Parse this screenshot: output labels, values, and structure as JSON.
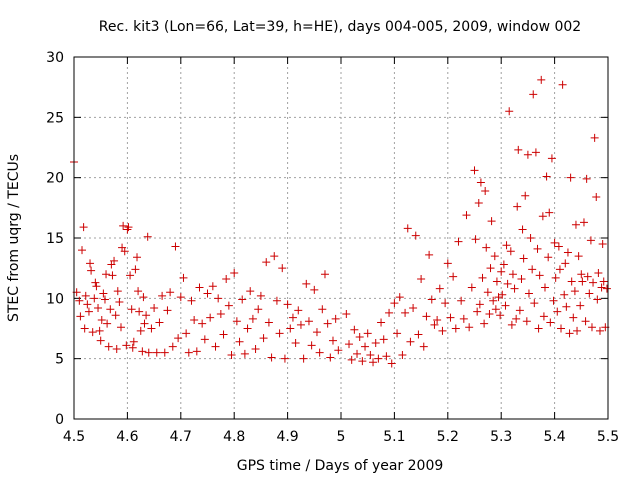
{
  "chart_data": {
    "type": "scatter",
    "title": "Rec. kit3 (Lon=66, Lat=39, h=HE), days 004-005, 2009, window 002",
    "xlabel": "GPS time / Days of year 2009",
    "ylabel": "STEC from uqrg / TECUs",
    "xlim": [
      4.5,
      5.5
    ],
    "ylim": [
      0,
      30
    ],
    "x_ticks": [
      4.5,
      4.6,
      4.7,
      4.8,
      4.9,
      5.0,
      5.1,
      5.2,
      5.3,
      5.4,
      5.5
    ],
    "x_tick_labels": [
      "4.5",
      "4.6",
      "4.7",
      "4.8",
      "4.9",
      "5",
      "5.1",
      "5.2",
      "5.3",
      "5.4",
      "5.5"
    ],
    "y_ticks": [
      0,
      5,
      10,
      15,
      20,
      25,
      30
    ],
    "y_tick_labels": [
      "0",
      "5",
      "10",
      "15",
      "20",
      "25",
      "30"
    ],
    "grid": true,
    "marker": "plus",
    "marker_color": "#cc0000",
    "series": [
      {
        "name": "stec",
        "points": [
          [
            4.5,
            21.3
          ],
          [
            4.505,
            10.5
          ],
          [
            4.51,
            9.8
          ],
          [
            4.512,
            8.5
          ],
          [
            4.515,
            14.0
          ],
          [
            4.518,
            15.9
          ],
          [
            4.52,
            7.5
          ],
          [
            4.522,
            10.2
          ],
          [
            4.525,
            9.5
          ],
          [
            4.528,
            8.9
          ],
          [
            4.53,
            12.9
          ],
          [
            4.532,
            12.3
          ],
          [
            4.535,
            7.2
          ],
          [
            4.538,
            10.0
          ],
          [
            4.54,
            11.3
          ],
          [
            4.542,
            11.0
          ],
          [
            4.545,
            9.2
          ],
          [
            4.548,
            7.3
          ],
          [
            4.55,
            6.5
          ],
          [
            4.552,
            8.2
          ],
          [
            4.555,
            10.4
          ],
          [
            4.558,
            9.9
          ],
          [
            4.56,
            12.0
          ],
          [
            4.562,
            7.9
          ],
          [
            4.565,
            6.0
          ],
          [
            4.568,
            9.1
          ],
          [
            4.57,
            12.8
          ],
          [
            4.572,
            11.9
          ],
          [
            4.575,
            13.1
          ],
          [
            4.578,
            8.6
          ],
          [
            4.58,
            5.8
          ],
          [
            4.582,
            10.6
          ],
          [
            4.585,
            9.7
          ],
          [
            4.588,
            7.6
          ],
          [
            4.59,
            14.2
          ],
          [
            4.592,
            16.0
          ],
          [
            4.595,
            13.9
          ],
          [
            4.598,
            6.1
          ],
          [
            4.6,
            15.7
          ],
          [
            4.602,
            15.9
          ],
          [
            4.605,
            11.9
          ],
          [
            4.608,
            9.1
          ],
          [
            4.61,
            5.9
          ],
          [
            4.612,
            6.4
          ],
          [
            4.615,
            12.4
          ],
          [
            4.618,
            13.4
          ],
          [
            4.62,
            10.6
          ],
          [
            4.622,
            8.9
          ],
          [
            4.625,
            7.3
          ],
          [
            4.628,
            5.6
          ],
          [
            4.63,
            10.1
          ],
          [
            4.632,
            7.9
          ],
          [
            4.635,
            8.6
          ],
          [
            4.638,
            15.1
          ],
          [
            4.64,
            5.5
          ],
          [
            4.645,
            7.5
          ],
          [
            4.65,
            9.2
          ],
          [
            4.655,
            5.5
          ],
          [
            4.66,
            8.0
          ],
          [
            4.665,
            10.2
          ],
          [
            4.67,
            5.5
          ],
          [
            4.675,
            9.0
          ],
          [
            4.68,
            10.5
          ],
          [
            4.685,
            6.0
          ],
          [
            4.69,
            14.3
          ],
          [
            4.695,
            6.7
          ],
          [
            4.7,
            10.1
          ],
          [
            4.705,
            11.7
          ],
          [
            4.71,
            7.1
          ],
          [
            4.715,
            5.5
          ],
          [
            4.72,
            9.8
          ],
          [
            4.725,
            8.2
          ],
          [
            4.73,
            5.6
          ],
          [
            4.735,
            10.9
          ],
          [
            4.74,
            7.9
          ],
          [
            4.745,
            6.6
          ],
          [
            4.75,
            10.4
          ],
          [
            4.755,
            8.4
          ],
          [
            4.76,
            11.0
          ],
          [
            4.765,
            6.0
          ],
          [
            4.77,
            10.0
          ],
          [
            4.775,
            8.7
          ],
          [
            4.78,
            7.0
          ],
          [
            4.785,
            11.6
          ],
          [
            4.79,
            9.4
          ],
          [
            4.795,
            5.3
          ],
          [
            4.8,
            12.1
          ],
          [
            4.805,
            8.1
          ],
          [
            4.81,
            6.4
          ],
          [
            4.815,
            9.9
          ],
          [
            4.82,
            5.4
          ],
          [
            4.825,
            7.5
          ],
          [
            4.83,
            10.6
          ],
          [
            4.835,
            8.3
          ],
          [
            4.84,
            5.8
          ],
          [
            4.845,
            9.1
          ],
          [
            4.85,
            10.2
          ],
          [
            4.855,
            6.7
          ],
          [
            4.86,
            13.0
          ],
          [
            4.865,
            8.0
          ],
          [
            4.87,
            5.1
          ],
          [
            4.875,
            13.5
          ],
          [
            4.88,
            9.8
          ],
          [
            4.885,
            7.1
          ],
          [
            4.89,
            12.5
          ],
          [
            4.895,
            5.0
          ],
          [
            4.9,
            9.5
          ],
          [
            4.905,
            7.5
          ],
          [
            4.91,
            8.4
          ],
          [
            4.915,
            6.3
          ],
          [
            4.92,
            9.0
          ],
          [
            4.925,
            7.8
          ],
          [
            4.93,
            5.0
          ],
          [
            4.935,
            11.2
          ],
          [
            4.94,
            8.1
          ],
          [
            4.945,
            6.1
          ],
          [
            4.95,
            10.7
          ],
          [
            4.955,
            7.2
          ],
          [
            4.96,
            5.5
          ],
          [
            4.965,
            9.1
          ],
          [
            4.97,
            12.0
          ],
          [
            4.975,
            7.9
          ],
          [
            4.98,
            5.1
          ],
          [
            4.985,
            6.5
          ],
          [
            4.99,
            8.3
          ],
          [
            4.995,
            5.7
          ],
          [
            5.01,
            8.7
          ],
          [
            5.015,
            6.2
          ],
          [
            5.02,
            4.9
          ],
          [
            5.025,
            7.4
          ],
          [
            5.03,
            5.4
          ],
          [
            5.035,
            6.8
          ],
          [
            5.04,
            4.8
          ],
          [
            5.045,
            6.0
          ],
          [
            5.05,
            7.1
          ],
          [
            5.055,
            5.3
          ],
          [
            5.06,
            4.7
          ],
          [
            5.065,
            6.3
          ],
          [
            5.07,
            5.0
          ],
          [
            5.075,
            8.0
          ],
          [
            5.08,
            6.6
          ],
          [
            5.085,
            5.2
          ],
          [
            5.09,
            8.8
          ],
          [
            5.095,
            4.6
          ],
          [
            5.1,
            9.6
          ],
          [
            5.105,
            7.1
          ],
          [
            5.11,
            10.1
          ],
          [
            5.115,
            5.3
          ],
          [
            5.12,
            8.8
          ],
          [
            5.125,
            15.8
          ],
          [
            5.13,
            6.4
          ],
          [
            5.135,
            9.2
          ],
          [
            5.14,
            15.2
          ],
          [
            5.145,
            7.0
          ],
          [
            5.15,
            11.6
          ],
          [
            5.155,
            6.0
          ],
          [
            5.16,
            8.5
          ],
          [
            5.165,
            13.6
          ],
          [
            5.17,
            9.9
          ],
          [
            5.175,
            7.8
          ],
          [
            5.18,
            8.2
          ],
          [
            5.185,
            10.8
          ],
          [
            5.19,
            7.3
          ],
          [
            5.195,
            9.6
          ],
          [
            5.2,
            12.9
          ],
          [
            5.205,
            8.4
          ],
          [
            5.21,
            11.8
          ],
          [
            5.215,
            7.5
          ],
          [
            5.22,
            14.7
          ],
          [
            5.225,
            9.8
          ],
          [
            5.23,
            8.3
          ],
          [
            5.235,
            16.9
          ],
          [
            5.24,
            7.6
          ],
          [
            5.245,
            10.9
          ],
          [
            5.25,
            20.6
          ],
          [
            5.252,
            14.9
          ],
          [
            5.255,
            8.9
          ],
          [
            5.258,
            17.9
          ],
          [
            5.26,
            9.5
          ],
          [
            5.262,
            19.6
          ],
          [
            5.265,
            11.7
          ],
          [
            5.268,
            7.9
          ],
          [
            5.27,
            18.9
          ],
          [
            5.272,
            14.2
          ],
          [
            5.275,
            10.5
          ],
          [
            5.278,
            8.7
          ],
          [
            5.28,
            12.5
          ],
          [
            5.282,
            16.4
          ],
          [
            5.285,
            9.8
          ],
          [
            5.288,
            13.5
          ],
          [
            5.29,
            9.1
          ],
          [
            5.292,
            11.4
          ],
          [
            5.295,
            10.1
          ],
          [
            5.298,
            8.6
          ],
          [
            5.3,
            12.2
          ],
          [
            5.302,
            10.3
          ],
          [
            5.305,
            12.8
          ],
          [
            5.308,
            9.4
          ],
          [
            5.31,
            14.4
          ],
          [
            5.312,
            11.2
          ],
          [
            5.315,
            25.5
          ],
          [
            5.318,
            13.9
          ],
          [
            5.32,
            7.8
          ],
          [
            5.322,
            12.0
          ],
          [
            5.325,
            10.8
          ],
          [
            5.328,
            8.3
          ],
          [
            5.33,
            17.6
          ],
          [
            5.332,
            22.3
          ],
          [
            5.335,
            9.0
          ],
          [
            5.338,
            11.6
          ],
          [
            5.34,
            15.7
          ],
          [
            5.342,
            13.3
          ],
          [
            5.345,
            18.5
          ],
          [
            5.348,
            8.1
          ],
          [
            5.35,
            21.9
          ],
          [
            5.352,
            10.4
          ],
          [
            5.355,
            15.0
          ],
          [
            5.358,
            12.4
          ],
          [
            5.36,
            26.9
          ],
          [
            5.362,
            9.6
          ],
          [
            5.365,
            22.1
          ],
          [
            5.368,
            14.1
          ],
          [
            5.37,
            7.5
          ],
          [
            5.372,
            11.9
          ],
          [
            5.375,
            28.1
          ],
          [
            5.378,
            16.8
          ],
          [
            5.38,
            8.5
          ],
          [
            5.382,
            10.9
          ],
          [
            5.385,
            20.1
          ],
          [
            5.388,
            13.4
          ],
          [
            5.39,
            17.1
          ],
          [
            5.392,
            8.0
          ],
          [
            5.395,
            21.6
          ],
          [
            5.398,
            9.8
          ],
          [
            5.4,
            14.6
          ],
          [
            5.402,
            11.7
          ],
          [
            5.405,
            8.9
          ],
          [
            5.408,
            14.3
          ],
          [
            5.41,
            12.4
          ],
          [
            5.412,
            7.5
          ],
          [
            5.415,
            27.7
          ],
          [
            5.418,
            10.3
          ],
          [
            5.42,
            12.9
          ],
          [
            5.422,
            9.3
          ],
          [
            5.425,
            13.8
          ],
          [
            5.428,
            7.1
          ],
          [
            5.43,
            20.0
          ],
          [
            5.432,
            11.4
          ],
          [
            5.435,
            8.4
          ],
          [
            5.438,
            10.6
          ],
          [
            5.44,
            16.1
          ],
          [
            5.442,
            7.3
          ],
          [
            5.445,
            13.5
          ],
          [
            5.448,
            9.4
          ],
          [
            5.45,
            12.0
          ],
          [
            5.452,
            11.4
          ],
          [
            5.455,
            16.3
          ],
          [
            5.458,
            8.1
          ],
          [
            5.46,
            19.9
          ],
          [
            5.462,
            11.8
          ],
          [
            5.465,
            10.4
          ],
          [
            5.468,
            14.8
          ],
          [
            5.47,
            7.6
          ],
          [
            5.472,
            11.3
          ],
          [
            5.475,
            23.3
          ],
          [
            5.478,
            18.4
          ],
          [
            5.48,
            9.9
          ],
          [
            5.482,
            12.1
          ],
          [
            5.485,
            7.3
          ],
          [
            5.488,
            10.9
          ],
          [
            5.49,
            14.5
          ],
          [
            5.492,
            11.4
          ],
          [
            5.495,
            7.6
          ],
          [
            5.498,
            10.8
          ]
        ]
      }
    ]
  }
}
